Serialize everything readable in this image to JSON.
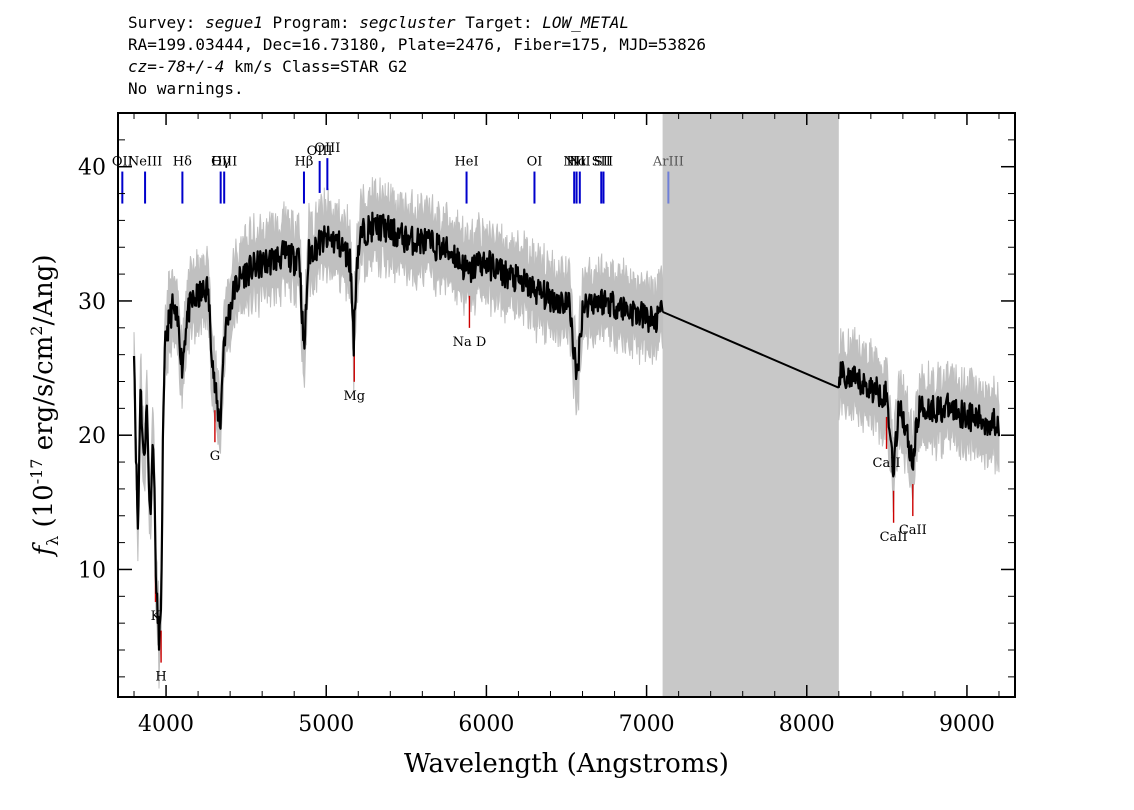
{
  "header": {
    "survey_label": "Survey:",
    "survey": "segue1",
    "program_label": "Program:",
    "program": "segcluster",
    "target_label": "Target:",
    "target": "LOW_METAL",
    "line2": "RA=199.03444, Dec=16.73180, Plate=2476, Fiber=175, MJD=53826",
    "cz_label": "cz=",
    "cz_value": "-78+/-4",
    "cz_unit": " km/s Class=STAR G2",
    "line4": "No warnings."
  },
  "chart_data": {
    "type": "line",
    "xlabel": "Wavelength (Angstroms)",
    "ylabel": "f_λ (10^-17 erg/s/cm^2/Ang)",
    "xlim": [
      3700,
      9300
    ],
    "ylim": [
      0.5,
      44
    ],
    "x_ticks": [
      4000,
      5000,
      6000,
      7000,
      8000,
      9000
    ],
    "y_ticks": [
      10,
      20,
      30,
      40
    ],
    "masked_region": [
      7100,
      8200
    ],
    "series": [
      {
        "color": "#000000",
        "x": [
          3800,
          3810,
          3825,
          3840,
          3860,
          3880,
          3900,
          3920,
          3940,
          3955,
          3968,
          3980,
          3995,
          4010,
          4040,
          4080,
          4101,
          4130,
          4170,
          4220,
          4260,
          4300,
          4320,
          4340,
          4360,
          4390,
          4430,
          4480,
          4550,
          4650,
          4750,
          4800,
          4830,
          4861,
          4890,
          4930,
          4980,
          5050,
          5100,
          5150,
          5172,
          5190,
          5220,
          5280,
          5350,
          5430,
          5520,
          5600,
          5700,
          5800,
          5893,
          5950,
          6050,
          6150,
          6250,
          6350,
          6450,
          6520,
          6563,
          6600,
          6650,
          6750,
          6850,
          6950,
          7050,
          7100,
          8200,
          8300,
          8400,
          8498,
          8542,
          8580,
          8662,
          8700,
          8800,
          8900,
          9000,
          9100,
          9200
        ],
        "y": [
          27,
          20,
          12.5,
          24,
          18,
          22,
          14,
          20,
          8,
          5,
          6,
          19,
          27,
          28,
          29.5,
          28,
          25,
          29,
          30,
          30.5,
          31,
          24,
          22,
          21,
          27,
          29,
          31,
          32,
          32.5,
          33,
          33.5,
          33,
          34,
          26,
          33.5,
          34,
          34.5,
          34.5,
          34,
          33,
          27,
          33,
          35,
          35.5,
          35.5,
          35,
          34.5,
          34.5,
          34,
          33.5,
          32,
          33,
          32.5,
          31.8,
          31.2,
          30.5,
          30,
          29.8,
          24,
          29.5,
          30,
          30,
          29.5,
          29,
          28.5,
          29,
          24.5,
          24,
          23.5,
          23,
          17.5,
          22.5,
          18,
          22,
          22,
          22,
          21.5,
          21,
          21
        ]
      }
    ]
  },
  "emission_lines": [
    {
      "label": "OII",
      "x": 3727
    },
    {
      "label": "NeIII",
      "x": 3869
    },
    {
      "label": "Hδ",
      "x": 4102
    },
    {
      "label": "Hγ",
      "x": 4341
    },
    {
      "label": "OIII",
      "x": 4363
    },
    {
      "label": "Hβ",
      "x": 4861
    },
    {
      "label": "OIII",
      "x": 4959
    },
    {
      "label": "OIII",
      "x": 5007
    },
    {
      "label": "HeI",
      "x": 5876
    },
    {
      "label": "OI",
      "x": 6300
    },
    {
      "label": "NII",
      "x": 6548
    },
    {
      "label": "Hα",
      "x": 6563
    },
    {
      "label": "NII",
      "x": 6583
    },
    {
      "label": "SII",
      "x": 6717
    },
    {
      "label": "SII",
      "x": 6731
    },
    {
      "label": "ArIII",
      "x": 7136
    }
  ],
  "absorption_lines": [
    {
      "label": "K",
      "x": 3934
    },
    {
      "label": "H",
      "x": 3969
    },
    {
      "label": "G",
      "x": 4305
    },
    {
      "label": "Mg",
      "x": 5175
    },
    {
      "label": "Na D",
      "x": 5894
    },
    {
      "label": "CaII",
      "x": 8498
    },
    {
      "label": "CaII",
      "x": 8542
    },
    {
      "label": "CaII",
      "x": 8662
    }
  ],
  "colors": {
    "emission": "#0000cc",
    "emission_faint": "#6f7fd8",
    "absorption": "#cc0000",
    "error_band": "#c0c0c0",
    "mask": "#c8c8c8"
  }
}
